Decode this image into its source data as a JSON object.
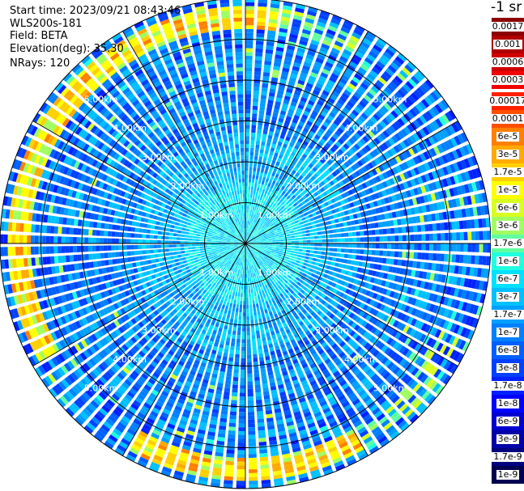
{
  "info": {
    "start_time": "Start time: 2023/09/21 08:43:46",
    "instrument": "WLS200s-181",
    "field": "Field: BETA",
    "elevation": "Elevation(deg): 35.30",
    "nrays": "NRays: 120"
  },
  "unit_label": "-1 sr",
  "chart_data": {
    "type": "heatmap",
    "projection": "polar-ppi",
    "field": "BETA",
    "nrays": 120,
    "elevation_deg": 35.3,
    "range_rings_km": [
      1.0,
      2.0,
      3.0,
      4.0,
      5.0
    ],
    "ring_labels": [
      "1.00km",
      "2.00km",
      "3.00km",
      "4.00km",
      "5.00km"
    ],
    "max_range_km": 6.0,
    "spokes": 12,
    "colorscale": [
      {
        "label": "0.0017",
        "color": "#8b0000"
      },
      {
        "label": "0.001",
        "color": "#b00000"
      },
      {
        "label": "0.0006",
        "color": "#d00000"
      },
      {
        "label": "0.0003",
        "color": "#f00000"
      },
      {
        "label": "0.00017",
        "color": "#ff2000"
      },
      {
        "label": "0.0001",
        "color": "#ff5000"
      },
      {
        "label": "6e-5",
        "color": "#ff8000"
      },
      {
        "label": "3e-5",
        "color": "#ffaa00"
      },
      {
        "label": "1.7e-5",
        "color": "#ffd000"
      },
      {
        "label": "1e-5",
        "color": "#ffff00"
      },
      {
        "label": "6e-6",
        "color": "#d8ff20"
      },
      {
        "label": "3e-6",
        "color": "#a0ff60"
      },
      {
        "label": "1.7e-6",
        "color": "#60ffa0"
      },
      {
        "label": "1e-6",
        "color": "#20ffe0"
      },
      {
        "label": "6e-7",
        "color": "#00e0ff"
      },
      {
        "label": "3e-7",
        "color": "#00c0ff"
      },
      {
        "label": "1.7e-7",
        "color": "#00a0ff"
      },
      {
        "label": "1e-7",
        "color": "#0080ff"
      },
      {
        "label": "6e-8",
        "color": "#0060ff"
      },
      {
        "label": "3e-8",
        "color": "#0040ff"
      },
      {
        "label": "1.7e-8",
        "color": "#0020ff"
      },
      {
        "label": "1e-8",
        "color": "#0000ff"
      },
      {
        "label": "6e-9",
        "color": "#0000d0"
      },
      {
        "label": "3e-9",
        "color": "#0000a8"
      },
      {
        "label": "1.7e-9",
        "color": "#000080"
      },
      {
        "label": "1e-9",
        "color": "#000050"
      }
    ]
  }
}
